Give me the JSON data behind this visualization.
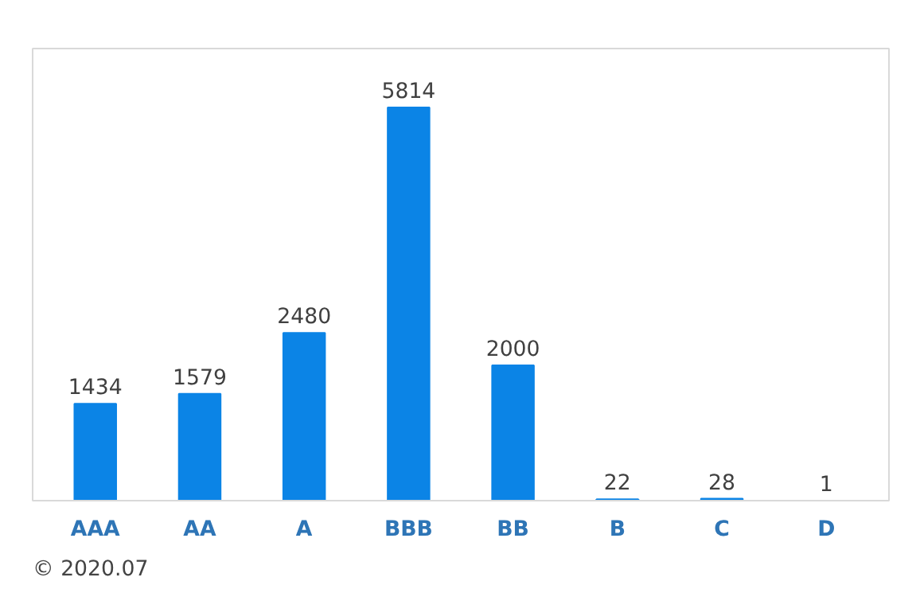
{
  "chart_data": {
    "type": "bar",
    "categories": [
      "AAA",
      "AA",
      "A",
      "BBB",
      "BB",
      "B",
      "C",
      "D"
    ],
    "values": [
      1434,
      1579,
      2480,
      5814,
      2000,
      22,
      28,
      1
    ],
    "color": "#0b84e6",
    "data_labels": true,
    "tick_labels": "x",
    "annotations": [
      "© 2020.07"
    ]
  }
}
